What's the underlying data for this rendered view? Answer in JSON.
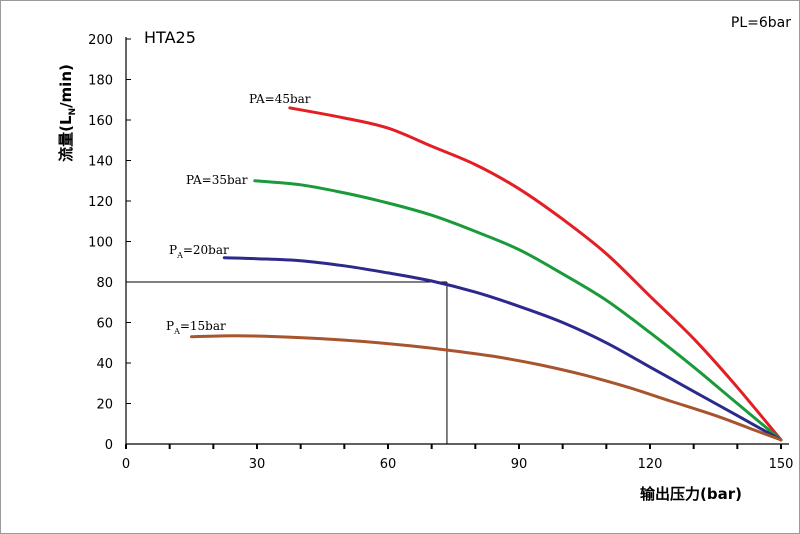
{
  "chart_data": {
    "type": "line",
    "title": "HTA25",
    "corner_note": "PL=6bar",
    "xlabel": "输出压力(bar)",
    "ylabel": "流量(LN/min)",
    "ylabel_parts": {
      "main": "流量(L",
      "sub": "N",
      "rest": "/min)"
    },
    "xlim": [
      0,
      150
    ],
    "ylim": [
      0,
      200
    ],
    "x_ticks": [
      0,
      30,
      60,
      90,
      120,
      150
    ],
    "y_ticks": [
      0,
      20,
      40,
      60,
      80,
      100,
      120,
      140,
      160,
      180,
      200
    ],
    "grid": false,
    "legend": "inline labels",
    "reference_point": {
      "x": 73.5,
      "y": 80
    },
    "series": [
      {
        "name": "PA=45bar",
        "label_parts": {
          "main": "PA=45bar",
          "sub": ""
        },
        "color": "#e31e24",
        "points": [
          [
            37.5,
            166
          ],
          [
            50,
            161
          ],
          [
            60,
            156
          ],
          [
            70,
            147
          ],
          [
            80,
            138
          ],
          [
            90,
            126
          ],
          [
            100,
            111
          ],
          [
            110,
            94
          ],
          [
            120,
            73
          ],
          [
            130,
            52
          ],
          [
            140,
            28
          ],
          [
            150,
            2
          ]
        ]
      },
      {
        "name": "PA=35bar",
        "label_parts": {
          "main": "PA=35bar",
          "sub": ""
        },
        "color": "#1a9a3a",
        "points": [
          [
            29.5,
            130
          ],
          [
            40,
            128
          ],
          [
            50,
            124
          ],
          [
            60,
            119
          ],
          [
            70,
            113
          ],
          [
            80,
            105
          ],
          [
            90,
            96
          ],
          [
            100,
            84
          ],
          [
            110,
            71
          ],
          [
            120,
            55
          ],
          [
            130,
            38
          ],
          [
            140,
            20
          ],
          [
            150,
            2
          ]
        ]
      },
      {
        "name": "PA=20bar",
        "label_parts": {
          "main": "P",
          "sub": "A",
          "rest": "=20bar"
        },
        "color": "#2b2a8c",
        "points": [
          [
            22.5,
            92
          ],
          [
            30,
            91.5
          ],
          [
            40,
            90.5
          ],
          [
            50,
            88
          ],
          [
            60,
            84.5
          ],
          [
            70,
            80.5
          ],
          [
            80,
            75
          ],
          [
            90,
            68
          ],
          [
            100,
            60
          ],
          [
            110,
            50
          ],
          [
            120,
            38
          ],
          [
            130,
            26
          ],
          [
            140,
            14
          ],
          [
            150,
            2
          ]
        ]
      },
      {
        "name": "PA=15bar",
        "label_parts": {
          "main": "P",
          "sub": "A",
          "rest": "=15bar"
        },
        "color": "#a8542e",
        "points": [
          [
            15,
            53
          ],
          [
            25,
            53.5
          ],
          [
            35,
            53
          ],
          [
            45,
            52
          ],
          [
            55,
            50.5
          ],
          [
            65,
            48.5
          ],
          [
            75,
            46
          ],
          [
            85,
            43
          ],
          [
            95,
            39
          ],
          [
            105,
            34
          ],
          [
            115,
            28
          ],
          [
            125,
            21
          ],
          [
            135,
            14
          ],
          [
            145,
            6
          ],
          [
            150,
            2
          ]
        ]
      }
    ]
  }
}
